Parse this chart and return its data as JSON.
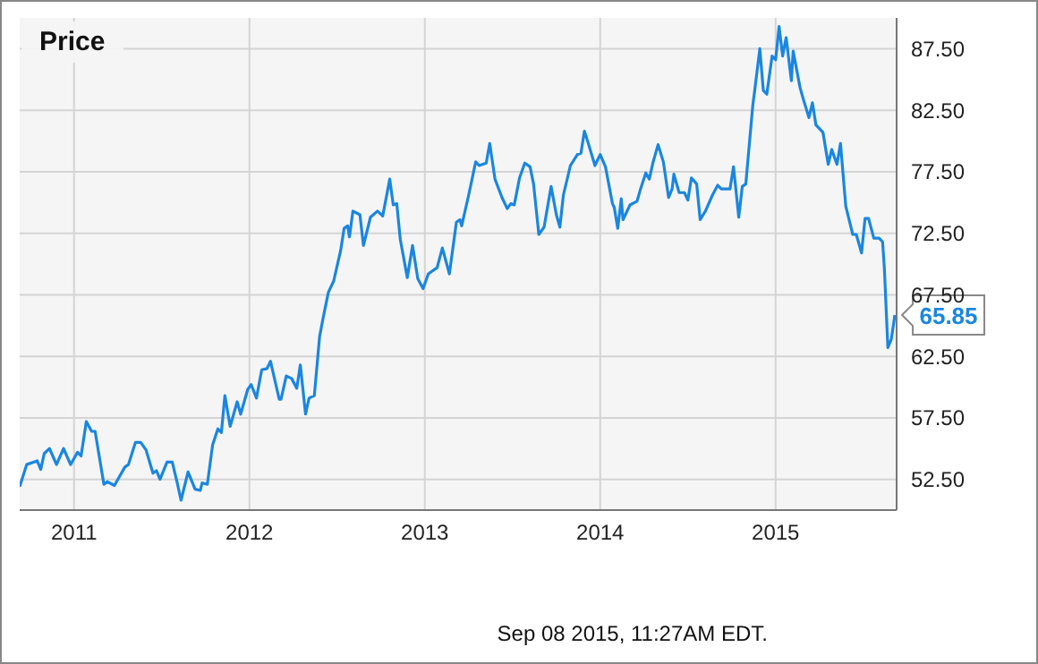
{
  "chart_data": {
    "type": "line",
    "title": "Price",
    "x": [
      2010.69,
      2010.73,
      2010.79,
      2010.81,
      2010.83,
      2010.86,
      2010.9,
      2010.94,
      2010.98,
      2011.02,
      2011.04,
      2011.07,
      2011.1,
      2011.12,
      2011.17,
      2011.19,
      2011.23,
      2011.29,
      2011.31,
      2011.35,
      2011.38,
      2011.41,
      2011.45,
      2011.47,
      2011.49,
      2011.53,
      2011.56,
      2011.59,
      2011.61,
      2011.65,
      2011.69,
      2011.72,
      2011.73,
      2011.76,
      2011.79,
      2011.82,
      2011.84,
      2011.86,
      2011.89,
      2011.93,
      2011.95,
      2011.99,
      2012.01,
      2012.04,
      2012.07,
      2012.1,
      2012.12,
      2012.17,
      2012.18,
      2012.21,
      2012.24,
      2012.27,
      2012.29,
      2012.32,
      2012.34,
      2012.37,
      2012.4,
      2012.42,
      2012.45,
      2012.48,
      2012.52,
      2012.54,
      2012.56,
      2012.57,
      2012.59,
      2012.63,
      2012.65,
      2012.69,
      2012.73,
      2012.76,
      2012.8,
      2012.82,
      2012.84,
      2012.86,
      2012.9,
      2012.93,
      2012.96,
      2012.99,
      2013.02,
      2013.07,
      2013.1,
      2013.14,
      2013.18,
      2013.2,
      2013.21,
      2013.25,
      2013.29,
      2013.31,
      2013.35,
      2013.37,
      2013.4,
      2013.44,
      2013.47,
      2013.49,
      2013.51,
      2013.54,
      2013.57,
      2013.6,
      2013.62,
      2013.65,
      2013.68,
      2013.72,
      2013.75,
      2013.77,
      2013.79,
      2013.83,
      2013.87,
      2013.89,
      2013.91,
      2013.93,
      2013.97,
      2014.0,
      2014.03,
      2014.07,
      2014.08,
      2014.1,
      2014.12,
      2014.13,
      2014.17,
      2014.21,
      2014.23,
      2014.26,
      2014.28,
      2014.3,
      2014.33,
      2014.36,
      2014.39,
      2014.41,
      2014.42,
      2014.45,
      2014.48,
      2014.5,
      2014.52,
      2014.55,
      2014.57,
      2014.6,
      2014.64,
      2014.67,
      2014.69,
      2014.74,
      2014.76,
      2014.79,
      2014.81,
      2014.83,
      2014.87,
      2014.88,
      2014.91,
      2014.93,
      2014.95,
      2014.98,
      2015.0,
      2015.02,
      2015.04,
      2015.06,
      2015.09,
      2015.1,
      2015.14,
      2015.16,
      2015.19,
      2015.21,
      2015.23,
      2015.27,
      2015.3,
      2015.32,
      2015.35,
      2015.37,
      2015.4,
      2015.44,
      2015.46,
      2015.49,
      2015.51,
      2015.53,
      2015.56,
      2015.59,
      2015.61,
      2015.62,
      2015.64,
      2015.66,
      2015.68
    ],
    "series": [
      {
        "color": "#1a86e0",
        "values": [
          51.9,
          53.7,
          54.0,
          53.3,
          54.6,
          55.0,
          53.7,
          55.0,
          53.7,
          54.7,
          54.4,
          57.2,
          56.4,
          56.4,
          52.1,
          52.3,
          52.0,
          53.5,
          53.7,
          55.5,
          55.5,
          54.9,
          53.0,
          53.2,
          52.5,
          53.9,
          53.9,
          52.1,
          50.8,
          53.1,
          51.7,
          51.6,
          52.2,
          52.1,
          55.3,
          56.6,
          56.3,
          59.3,
          56.8,
          58.8,
          57.8,
          59.8,
          60.2,
          59.1,
          61.4,
          61.5,
          62.1,
          59.0,
          59.0,
          60.9,
          60.7,
          59.9,
          61.8,
          57.8,
          59.1,
          59.3,
          64.1,
          65.6,
          67.7,
          68.6,
          71.1,
          72.9,
          73.1,
          72.2,
          74.3,
          74.0,
          71.5,
          73.8,
          74.3,
          73.9,
          76.9,
          74.8,
          74.9,
          72.0,
          68.9,
          71.5,
          68.8,
          68.0,
          69.2,
          69.7,
          71.3,
          69.2,
          73.4,
          73.6,
          73.1,
          75.6,
          78.3,
          78.0,
          78.2,
          79.8,
          76.9,
          75.4,
          74.5,
          74.9,
          74.8,
          77.0,
          78.2,
          77.9,
          76.5,
          72.4,
          73.0,
          76.3,
          74.0,
          73.0,
          75.6,
          78.0,
          78.9,
          79.0,
          80.8,
          79.9,
          78.0,
          78.9,
          77.9,
          74.9,
          74.6,
          72.9,
          75.3,
          73.6,
          74.8,
          75.1,
          76.1,
          77.4,
          76.9,
          78.2,
          79.7,
          78.3,
          75.4,
          76.1,
          77.3,
          75.8,
          75.8,
          75.2,
          77.0,
          76.5,
          73.6,
          74.3,
          75.6,
          76.4,
          76.1,
          76.1,
          77.9,
          73.8,
          76.3,
          76.5,
          82.9,
          84.0,
          87.5,
          84.1,
          83.8,
          86.9,
          86.6,
          89.3,
          86.9,
          88.4,
          84.9,
          87.3,
          84.3,
          83.3,
          81.9,
          83.1,
          81.3,
          80.7,
          78.1,
          79.3,
          78.1,
          79.8,
          74.7,
          72.4,
          72.4,
          70.9,
          73.7,
          73.7,
          72.1,
          72.1,
          71.8,
          69.7,
          63.2,
          63.9,
          65.85
        ]
      }
    ],
    "xlim": [
      2010.69,
      2015.69
    ],
    "xticks": [
      2011,
      2012,
      2013,
      2014,
      2015
    ],
    "ylim": [
      50,
      90
    ],
    "yticks": [
      {
        "value": 52.5,
        "label": "52.50"
      },
      {
        "value": 57.5,
        "label": "57.50"
      },
      {
        "value": 62.5,
        "label": "62.50"
      },
      {
        "value": 67.5,
        "label": "67.50"
      },
      {
        "value": 72.5,
        "label": "72.50"
      },
      {
        "value": 77.5,
        "label": "77.50"
      },
      {
        "value": 82.5,
        "label": "82.50"
      },
      {
        "value": 87.5,
        "label": "87.50"
      }
    ],
    "grid": true,
    "line_style": "solid",
    "annotations": [
      {
        "text": "65.85",
        "x": 2015.68,
        "y": 65.85
      },
      "Sep 08 2015, 11:27AM EDT."
    ]
  }
}
